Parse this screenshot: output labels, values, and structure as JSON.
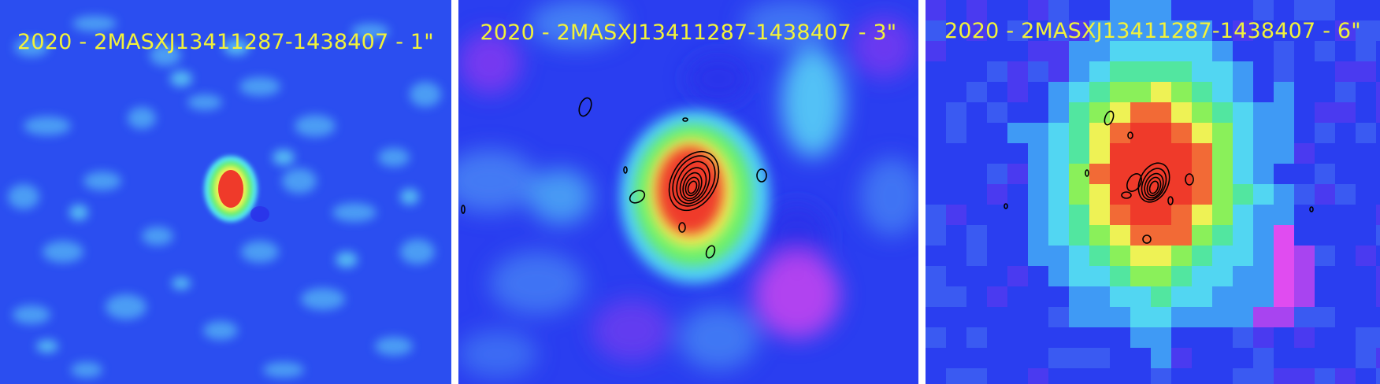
{
  "panels": [
    {
      "label": "2020 - 2MASXJ13411287-1438407 - 1\""
    },
    {
      "label": "2020 - 2MASXJ13411287-1438407 - 3\""
    },
    {
      "label": "2020 - 2MASXJ13411287-1438407 - 6\""
    }
  ],
  "colors": {
    "background_blue": "#2a45f0",
    "cyan": "#52e6f2",
    "green": "#6af06a",
    "yellow": "#eef255",
    "orange": "#f6823a",
    "red": "#ef3a2a",
    "magenta": "#e04cf0",
    "label_yellow": "#f2f23a",
    "contour": "#000000"
  }
}
